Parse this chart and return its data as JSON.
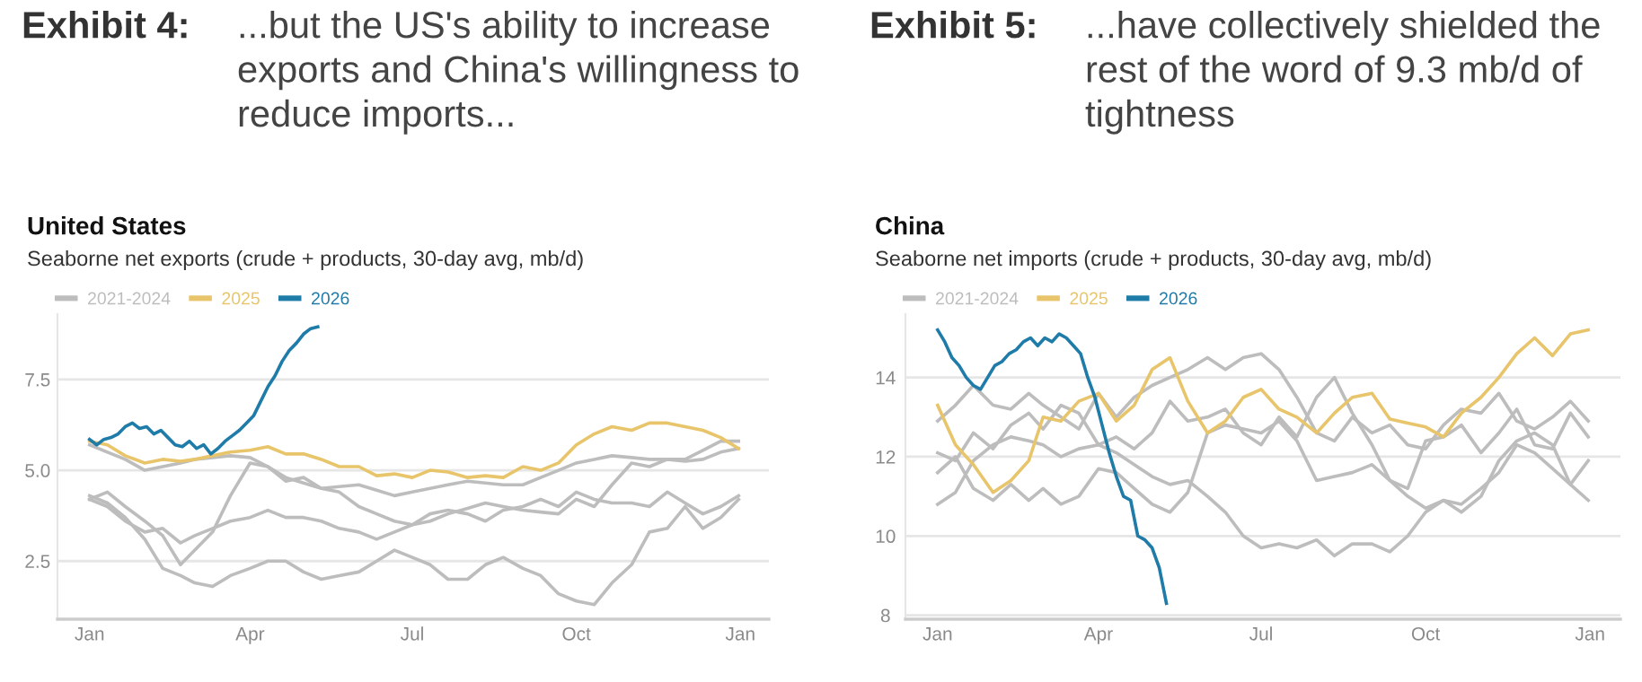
{
  "chart_data": [
    {
      "type": "line",
      "title": "United States",
      "subtitle": "Seaborne net exports (crude + products, 30-day avg, mb/d)",
      "annotations": [
        "Exhibit 4:",
        "...but the US's ability to increase exports and China's willingness to reduce imports..."
      ],
      "x": [
        "2025-01-01",
        "2025-01-11",
        "2025-01-21",
        "2025-02-01",
        "2025-02-11",
        "2025-02-21",
        "2025-03-01",
        "2025-03-11",
        "2025-03-21",
        "2025-04-01",
        "2025-04-11",
        "2025-04-21",
        "2025-05-01",
        "2025-05-11",
        "2025-05-21",
        "2025-06-01",
        "2025-06-11",
        "2025-06-21",
        "2025-07-01",
        "2025-07-11",
        "2025-07-21",
        "2025-08-01",
        "2025-08-11",
        "2025-08-21",
        "2025-09-01",
        "2025-09-11",
        "2025-09-21",
        "2025-10-01",
        "2025-10-11",
        "2025-10-21",
        "2025-11-01",
        "2025-11-11",
        "2025-11-21",
        "2025-12-01",
        "2025-12-11",
        "2025-12-21",
        "2025-12-31"
      ],
      "xlim": [
        "2024-12-14",
        "2026-01-17"
      ],
      "xticks": [
        {
          "value": "2025-01-01",
          "label": "Jan"
        },
        {
          "value": "2025-04-01",
          "label": "Apr"
        },
        {
          "value": "2025-07-01",
          "label": "Jul"
        },
        {
          "value": "2025-10-01",
          "label": "Oct"
        },
        {
          "value": "2026-01-01",
          "label": "Jan"
        }
      ],
      "ylim": [
        0.9,
        9.3
      ],
      "yticks": [
        {
          "value": 2.5,
          "label": "2.5"
        },
        {
          "value": 5,
          "label": "5.0"
        },
        {
          "value": 7.5,
          "label": "7.5"
        }
      ],
      "grid": "y",
      "legend": "top left",
      "marker": "none",
      "line_style": "solid",
      "series": [
        {
          "name": "2021-2024",
          "color": "#bdbdbd",
          "values": [
            5.7,
            5.5,
            5.3,
            5.0,
            5.1,
            5.2,
            5.3,
            5.35,
            5.4,
            5.35,
            5.1,
            4.8,
            4.65,
            4.5,
            4.55,
            4.6,
            4.45,
            4.3,
            4.4,
            4.5,
            4.6,
            4.7,
            4.65,
            4.6,
            4.6,
            4.8,
            5.0,
            5.2,
            5.3,
            5.4,
            5.35,
            5.3,
            5.3,
            5.3,
            5.55,
            5.8,
            5.8
          ]
        },
        {
          "color": "#bdbdbd",
          "values": [
            4.2,
            4.4,
            4.0,
            3.6,
            3.2,
            2.4,
            2.8,
            3.3,
            4.3,
            5.2,
            5.1,
            4.7,
            4.8,
            4.5,
            4.4,
            4.0,
            3.8,
            3.6,
            3.5,
            3.6,
            3.8,
            3.95,
            4.1,
            4.0,
            3.9,
            3.85,
            3.8,
            4.2,
            4.0,
            4.6,
            5.2,
            5.1,
            5.3,
            5.25,
            5.3,
            5.5,
            5.6
          ]
        },
        {
          "color": "#bdbdbd",
          "values": [
            4.3,
            4.1,
            3.7,
            3.1,
            2.3,
            2.1,
            1.9,
            1.8,
            2.1,
            2.3,
            2.5,
            2.5,
            2.2,
            2.0,
            2.1,
            2.2,
            2.5,
            2.8,
            2.6,
            2.4,
            2.0,
            2.0,
            2.4,
            2.6,
            2.3,
            2.1,
            1.6,
            1.4,
            1.3,
            1.9,
            2.4,
            3.3,
            3.4,
            4.0,
            3.4,
            3.7,
            4.2
          ]
        },
        {
          "color": "#bdbdbd",
          "values": [
            4.2,
            4.0,
            3.6,
            3.3,
            3.4,
            3.0,
            3.2,
            3.4,
            3.6,
            3.7,
            3.9,
            3.7,
            3.7,
            3.6,
            3.4,
            3.3,
            3.1,
            3.3,
            3.5,
            3.8,
            3.9,
            3.8,
            3.6,
            3.9,
            4.0,
            4.2,
            4.0,
            4.4,
            4.2,
            4.1,
            4.1,
            4.0,
            4.4,
            4.1,
            3.8,
            4.0,
            4.3
          ]
        },
        {
          "name": "2025",
          "color": "#e8c56b",
          "values": [
            5.8,
            5.7,
            5.4,
            5.2,
            5.3,
            5.25,
            5.3,
            5.4,
            5.5,
            5.55,
            5.65,
            5.45,
            5.45,
            5.3,
            5.1,
            5.1,
            4.85,
            4.9,
            4.8,
            5.0,
            4.95,
            4.8,
            4.85,
            4.8,
            5.1,
            5.0,
            5.2,
            5.7,
            6.0,
            6.2,
            6.1,
            6.3,
            6.3,
            6.2,
            6.1,
            5.9,
            5.6
          ]
        },
        {
          "name": "2026",
          "color": "#1f7ba8",
          "x": [
            "2025-01-01",
            "2025-01-05",
            "2025-01-09",
            "2025-01-13",
            "2025-01-17",
            "2025-01-21",
            "2025-01-25",
            "2025-01-29",
            "2025-02-02",
            "2025-02-06",
            "2025-02-10",
            "2025-02-14",
            "2025-02-18",
            "2025-02-22",
            "2025-02-26",
            "2025-03-02",
            "2025-03-06",
            "2025-03-10",
            "2025-03-14",
            "2025-03-18",
            "2025-03-22",
            "2025-03-26",
            "2025-03-30",
            "2025-04-03",
            "2025-04-07",
            "2025-04-11",
            "2025-04-15",
            "2025-04-19",
            "2025-04-23",
            "2025-04-27",
            "2025-05-01",
            "2025-05-05",
            "2025-05-09"
          ],
          "values": [
            5.85,
            5.7,
            5.85,
            5.9,
            6.0,
            6.2,
            6.3,
            6.15,
            6.2,
            6.0,
            6.1,
            5.9,
            5.7,
            5.65,
            5.8,
            5.6,
            5.7,
            5.45,
            5.6,
            5.8,
            5.95,
            6.1,
            6.3,
            6.5,
            6.9,
            7.3,
            7.6,
            8.0,
            8.3,
            8.5,
            8.75,
            8.9,
            8.95
          ]
        }
      ]
    },
    {
      "type": "line",
      "title": "China",
      "subtitle": "Seaborne net imports (crude + products, 30-day avg, mb/d)",
      "annotations": [
        "Exhibit 5:",
        "...have collectively shielded the rest of the word of 9.3 mb/d of tightness"
      ],
      "x": [
        "2025-01-01",
        "2025-01-11",
        "2025-01-21",
        "2025-02-01",
        "2025-02-11",
        "2025-02-21",
        "2025-03-01",
        "2025-03-11",
        "2025-03-21",
        "2025-04-01",
        "2025-04-11",
        "2025-04-21",
        "2025-05-01",
        "2025-05-11",
        "2025-05-21",
        "2025-06-01",
        "2025-06-11",
        "2025-06-21",
        "2025-07-01",
        "2025-07-11",
        "2025-07-21",
        "2025-08-01",
        "2025-08-11",
        "2025-08-21",
        "2025-09-01",
        "2025-09-11",
        "2025-09-21",
        "2025-10-01",
        "2025-10-11",
        "2025-10-21",
        "2025-11-01",
        "2025-11-11",
        "2025-11-21",
        "2025-12-01",
        "2025-12-11",
        "2025-12-21",
        "2025-12-31"
      ],
      "xlim": [
        "2024-12-14",
        "2026-01-18"
      ],
      "xticks": [
        {
          "value": "2025-01-01",
          "label": "Jan"
        },
        {
          "value": "2025-04-01",
          "label": "Apr"
        },
        {
          "value": "2025-07-01",
          "label": "Jul"
        },
        {
          "value": "2025-10-01",
          "label": "Oct"
        },
        {
          "value": "2026-01-01",
          "label": "Jan"
        }
      ],
      "ylim": [
        7.9,
        15.6
      ],
      "yticks": [
        8,
        10,
        12,
        14
      ],
      "grid": "y",
      "legend": "top left",
      "marker": "none",
      "line_style": "solid",
      "series": [
        {
          "name": "2021-2024",
          "color": "#bdbdbd",
          "values": [
            12.9,
            13.3,
            13.8,
            13.3,
            13.2,
            13.6,
            13.3,
            13.0,
            12.7,
            13.6,
            13.0,
            13.5,
            13.8,
            14.0,
            14.2,
            14.5,
            14.2,
            14.5,
            14.6,
            14.2,
            13.5,
            12.6,
            12.4,
            13.0,
            12.6,
            12.8,
            12.3,
            12.2,
            12.8,
            13.2,
            13.1,
            13.6,
            12.9,
            12.7,
            13.0,
            13.4,
            12.9
          ]
        },
        {
          "color": "#bdbdbd",
          "values": [
            10.8,
            11.1,
            11.9,
            12.3,
            12.5,
            12.4,
            12.3,
            12.0,
            12.2,
            12.3,
            12.1,
            11.8,
            11.5,
            11.3,
            11.4,
            11.0,
            10.6,
            10.0,
            9.7,
            9.8,
            9.7,
            9.9,
            9.5,
            9.8,
            9.8,
            9.6,
            10.0,
            10.6,
            10.9,
            10.8,
            11.2,
            11.6,
            12.3,
            12.1,
            11.7,
            11.3,
            11.9
          ]
        },
        {
          "color": "#bdbdbd",
          "values": [
            11.6,
            12.0,
            11.2,
            10.9,
            11.3,
            10.9,
            11.2,
            10.8,
            11.0,
            11.7,
            11.6,
            11.2,
            10.8,
            10.6,
            11.1,
            12.6,
            12.8,
            12.7,
            12.6,
            12.9,
            12.4,
            11.4,
            11.5,
            11.6,
            11.8,
            11.4,
            11.0,
            10.7,
            10.9,
            10.6,
            11.0,
            11.9,
            12.4,
            12.6,
            12.3,
            11.3,
            10.9
          ]
        },
        {
          "color": "#bdbdbd",
          "values": [
            12.1,
            11.9,
            12.6,
            12.2,
            12.8,
            13.1,
            12.7,
            13.3,
            13.1,
            12.3,
            12.5,
            12.2,
            12.6,
            13.4,
            12.9,
            13.0,
            13.2,
            12.6,
            12.3,
            13.0,
            12.5,
            13.5,
            14.0,
            13.1,
            12.3,
            11.4,
            11.2,
            12.4,
            12.5,
            12.8,
            12.1,
            12.6,
            13.2,
            12.3,
            12.2,
            13.1,
            12.5
          ]
        },
        {
          "name": "2025",
          "color": "#e8c56b",
          "values": [
            13.3,
            12.3,
            11.8,
            11.1,
            11.4,
            11.9,
            13.0,
            12.9,
            13.4,
            13.6,
            12.9,
            13.3,
            14.2,
            14.5,
            13.4,
            12.6,
            12.9,
            13.5,
            13.7,
            13.2,
            13.0,
            12.6,
            13.1,
            13.5,
            13.6,
            12.95,
            12.85,
            12.75,
            12.5,
            13.1,
            13.5,
            14.0,
            14.6,
            15.0,
            14.55,
            15.1,
            15.2
          ]
        },
        {
          "name": "2026",
          "color": "#1f7ba8",
          "x": [
            "2025-01-01",
            "2025-01-05",
            "2025-01-09",
            "2025-01-13",
            "2025-01-17",
            "2025-01-21",
            "2025-01-25",
            "2025-01-29",
            "2025-02-02",
            "2025-02-06",
            "2025-02-10",
            "2025-02-14",
            "2025-02-18",
            "2025-02-22",
            "2025-02-26",
            "2025-03-02",
            "2025-03-06",
            "2025-03-10",
            "2025-03-14",
            "2025-03-18",
            "2025-03-22",
            "2025-03-26",
            "2025-03-30",
            "2025-04-03",
            "2025-04-07",
            "2025-04-11",
            "2025-04-15",
            "2025-04-19",
            "2025-04-23",
            "2025-04-27",
            "2025-05-01",
            "2025-05-05",
            "2025-05-09"
          ],
          "values": [
            15.2,
            14.9,
            14.5,
            14.3,
            14.0,
            13.8,
            13.7,
            14.0,
            14.3,
            14.4,
            14.6,
            14.7,
            14.9,
            15.0,
            14.8,
            15.0,
            14.9,
            15.1,
            15.0,
            14.8,
            14.6,
            14.0,
            13.5,
            12.8,
            12.1,
            11.5,
            11.0,
            10.9,
            10.0,
            9.9,
            9.7,
            9.2,
            8.3
          ]
        }
      ]
    }
  ]
}
